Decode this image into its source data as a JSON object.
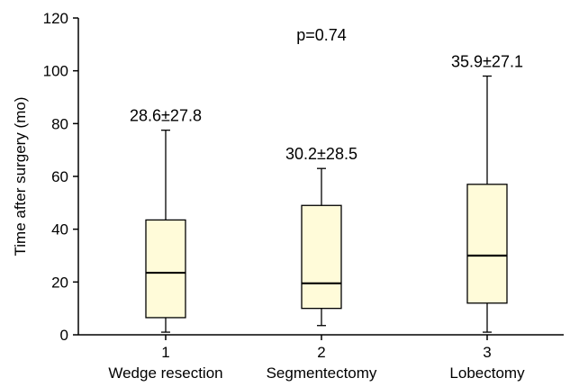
{
  "chart_data": {
    "type": "box",
    "ylabel": "Time after surgery (mo)",
    "ylim": [
      0,
      120
    ],
    "yticks": [
      0,
      20,
      40,
      60,
      80,
      100,
      120
    ],
    "grid": false,
    "annotation": "p=0.74",
    "categories": [
      {
        "tick": "1",
        "name": "Wedge resection",
        "stat": "28.6±27.8"
      },
      {
        "tick": "2",
        "name": "Segmentectomy",
        "stat": "30.2±28.5"
      },
      {
        "tick": "3",
        "name": "Lobectomy",
        "stat": "35.9±27.1"
      }
    ],
    "boxes": [
      {
        "min": 1,
        "q1": 6.5,
        "median": 23.5,
        "q3": 43.5,
        "max": 77.5
      },
      {
        "min": 3.5,
        "q1": 10,
        "median": 19.5,
        "q3": 49,
        "max": 63
      },
      {
        "min": 1,
        "q1": 12,
        "median": 30,
        "q3": 57,
        "max": 98
      }
    ],
    "box_fill": "#fffbd9"
  }
}
